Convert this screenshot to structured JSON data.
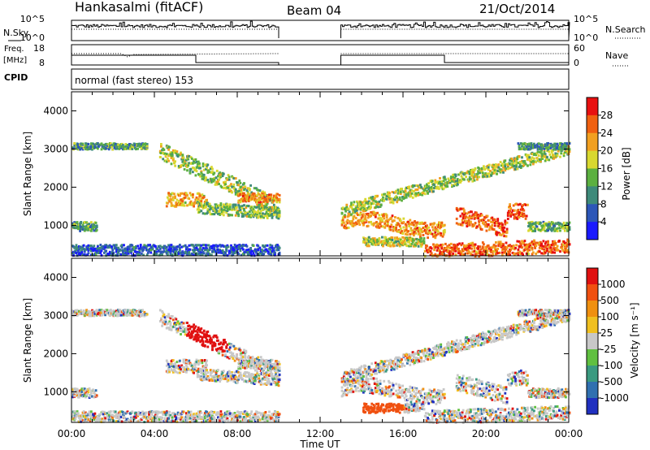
{
  "header": {
    "station": "Hankasalmi (fitACF)",
    "beam": "Beam 04",
    "date": "21/Oct/2014",
    "cpid_label": "CPID",
    "cpid_value": "normal (fast stereo) 153",
    "left_labels": {
      "nsky": "N.Sky",
      "freq": "Freq.",
      "mhz": "[MHz]"
    },
    "right_labels": {
      "nsearch": "N.Search",
      "nave": "Nave"
    }
  },
  "chart_data": [
    {
      "type": "line",
      "name": "noise-panel",
      "ylabels_left": [
        "10^5",
        "10^0"
      ],
      "ylabels_right": [
        "10^5",
        "10^0"
      ],
      "data_gap": {
        "start": 10.0,
        "end": 13.0
      },
      "series": [
        {
          "name": "N.Sky"
        },
        {
          "name": "N.Search"
        }
      ]
    },
    {
      "type": "line",
      "name": "frequency-panel",
      "ylabels_left": [
        "18",
        "8"
      ],
      "ylabels_right": [
        "60",
        "0"
      ],
      "data_gap": {
        "start": 10.0,
        "end": 13.0
      },
      "series": [
        {
          "name": "Freq."
        },
        {
          "name": "Nave"
        }
      ]
    },
    {
      "type": "heatmap",
      "name": "power-panel",
      "xlim": [
        0,
        24
      ],
      "ylim": [
        200,
        4500
      ],
      "ylabel": "Slant Range [km]",
      "yticks": [
        1000,
        2000,
        3000,
        4000
      ],
      "colorbar": {
        "label": "Power [dB]",
        "ticks": [
          "4",
          "8",
          "12",
          "16",
          "20",
          "24",
          "28"
        ],
        "colors": [
          "#1a1aff",
          "#2c56b8",
          "#3e8a7a",
          "#5cb040",
          "#d8d830",
          "#f2a020",
          "#f06010",
          "#e81010"
        ]
      }
    },
    {
      "type": "heatmap",
      "name": "velocity-panel",
      "xlim": [
        0,
        24
      ],
      "ylim": [
        200,
        4500
      ],
      "ylabel": "Slant Range [km]",
      "yticks": [
        1000,
        2000,
        3000,
        4000
      ],
      "xticks": [
        "00:00",
        "04:00",
        "08:00",
        "12:00",
        "16:00",
        "20:00",
        "00:00"
      ],
      "xlabel": "Time UT",
      "colorbar": {
        "label": "Velocity [m s⁻¹]",
        "ticks": [
          "1000",
          "500",
          "100",
          "25",
          "-25",
          "-100",
          "-500",
          "-1000"
        ],
        "colors": [
          "#2030c0",
          "#3070b0",
          "#3a9a80",
          "#60c040",
          "#c8c8c8",
          "#f0c020",
          "#f09010",
          "#f05010",
          "#e01010"
        ]
      }
    }
  ]
}
